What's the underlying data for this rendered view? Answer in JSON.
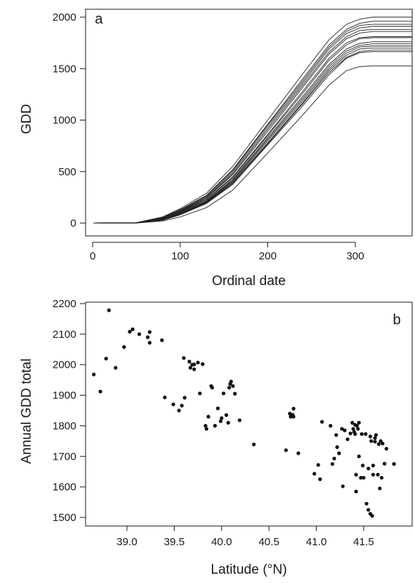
{
  "chart_data": [
    {
      "type": "line",
      "panel_label": "a",
      "xlabel": "Ordinal date",
      "ylabel": "GDD",
      "xlim": [
        0,
        365
      ],
      "ylim": [
        0,
        2000
      ],
      "x_ticks": [
        0,
        100,
        200,
        300
      ],
      "y_ticks": [
        0,
        500,
        1000,
        1500,
        2000
      ],
      "grid": false,
      "series": [
        {
          "x": [
            1,
            50,
            80,
            100,
            130,
            160,
            200,
            240,
            270,
            290,
            305,
            320,
            365
          ],
          "y": [
            0,
            5,
            60,
            140,
            290,
            550,
            1000,
            1450,
            1780,
            1930,
            1980,
            2000,
            2000
          ]
        },
        {
          "x": [
            1,
            50,
            80,
            100,
            130,
            160,
            200,
            240,
            270,
            290,
            305,
            320,
            365
          ],
          "y": [
            0,
            4,
            55,
            130,
            270,
            520,
            960,
            1400,
            1730,
            1880,
            1940,
            1960,
            1960
          ]
        },
        {
          "x": [
            1,
            50,
            80,
            100,
            130,
            160,
            200,
            240,
            270,
            290,
            305,
            320,
            365
          ],
          "y": [
            0,
            4,
            50,
            125,
            265,
            510,
            950,
            1380,
            1710,
            1860,
            1920,
            1930,
            1930
          ]
        },
        {
          "x": [
            1,
            50,
            80,
            100,
            130,
            160,
            200,
            240,
            270,
            290,
            305,
            320,
            365
          ],
          "y": [
            0,
            3,
            48,
            120,
            255,
            495,
            930,
            1360,
            1690,
            1840,
            1895,
            1910,
            1910
          ]
        },
        {
          "x": [
            1,
            50,
            80,
            100,
            130,
            160,
            200,
            240,
            270,
            290,
            305,
            320,
            365
          ],
          "y": [
            0,
            3,
            45,
            115,
            245,
            480,
            910,
            1340,
            1660,
            1810,
            1870,
            1880,
            1880
          ]
        },
        {
          "x": [
            1,
            50,
            80,
            100,
            130,
            160,
            200,
            240,
            270,
            290,
            305,
            320,
            365
          ],
          "y": [
            0,
            3,
            45,
            110,
            240,
            470,
            890,
            1320,
            1640,
            1790,
            1845,
            1860,
            1860
          ]
        },
        {
          "x": [
            1,
            50,
            80,
            100,
            130,
            160,
            200,
            240,
            270,
            290,
            305,
            320,
            365
          ],
          "y": [
            0,
            3,
            40,
            105,
            230,
            450,
            860,
            1280,
            1600,
            1750,
            1800,
            1810,
            1810
          ]
        },
        {
          "x": [
            1,
            50,
            80,
            100,
            130,
            160,
            200,
            240,
            270,
            290,
            305,
            320,
            365
          ],
          "y": [
            0,
            2,
            38,
            100,
            225,
            440,
            850,
            1260,
            1580,
            1730,
            1790,
            1800,
            1800
          ]
        },
        {
          "x": [
            1,
            50,
            80,
            100,
            130,
            160,
            200,
            240,
            270,
            290,
            305,
            320,
            365
          ],
          "y": [
            0,
            2,
            35,
            95,
            215,
            425,
            830,
            1230,
            1540,
            1690,
            1745,
            1760,
            1760
          ]
        },
        {
          "x": [
            1,
            50,
            80,
            100,
            130,
            160,
            200,
            240,
            270,
            290,
            305,
            320,
            365
          ],
          "y": [
            0,
            2,
            35,
            90,
            210,
            415,
            815,
            1210,
            1520,
            1670,
            1725,
            1740,
            1740
          ]
        },
        {
          "x": [
            1,
            50,
            80,
            100,
            130,
            160,
            200,
            240,
            270,
            290,
            305,
            320,
            365
          ],
          "y": [
            0,
            2,
            32,
            88,
            205,
            405,
            800,
            1190,
            1500,
            1650,
            1710,
            1720,
            1720
          ]
        },
        {
          "x": [
            1,
            50,
            80,
            100,
            130,
            160,
            200,
            240,
            270,
            290,
            305,
            320,
            365
          ],
          "y": [
            0,
            2,
            30,
            85,
            200,
            395,
            780,
            1170,
            1480,
            1630,
            1690,
            1700,
            1700
          ]
        },
        {
          "x": [
            1,
            50,
            80,
            100,
            130,
            160,
            200,
            240,
            270,
            290,
            305,
            320,
            365
          ],
          "y": [
            0,
            2,
            30,
            82,
            195,
            385,
            770,
            1160,
            1460,
            1610,
            1665,
            1680,
            1680
          ]
        },
        {
          "x": [
            1,
            50,
            80,
            100,
            130,
            160,
            200,
            240,
            270,
            290,
            305,
            320,
            365
          ],
          "y": [
            0,
            1,
            28,
            80,
            190,
            375,
            760,
            1140,
            1440,
            1600,
            1655,
            1665,
            1665
          ]
        },
        {
          "x": [
            1,
            50,
            80,
            100,
            130,
            160,
            200,
            240,
            270,
            290,
            305,
            320,
            365
          ],
          "y": [
            0,
            1,
            20,
            60,
            150,
            320,
            680,
            1050,
            1340,
            1480,
            1520,
            1525,
            1525
          ]
        }
      ]
    },
    {
      "type": "scatter",
      "panel_label": "b",
      "xlabel": "Latitude (°N)",
      "ylabel": "Annual GDD total",
      "xlim": [
        38.6,
        41.85
      ],
      "ylim": [
        1490,
        2210
      ],
      "x_ticks": [
        "39.0",
        "39.5",
        "40.0",
        "40.5",
        "41.0",
        "41.5"
      ],
      "y_ticks": [
        "1500",
        "1600",
        "1700",
        "1800",
        "1900",
        "2000",
        "2100",
        "2200"
      ],
      "grid": false,
      "points": [
        [
          38.65,
          1968
        ],
        [
          38.72,
          1912
        ],
        [
          38.78,
          2020
        ],
        [
          38.81,
          2178
        ],
        [
          38.88,
          1990
        ],
        [
          38.97,
          2058
        ],
        [
          39.03,
          2108
        ],
        [
          39.06,
          2116
        ],
        [
          39.13,
          2100
        ],
        [
          39.22,
          2090
        ],
        [
          39.24,
          2107
        ],
        [
          39.24,
          2072
        ],
        [
          39.37,
          2080
        ],
        [
          39.4,
          1893
        ],
        [
          39.49,
          1870
        ],
        [
          39.55,
          1850
        ],
        [
          39.58,
          1866
        ],
        [
          39.6,
          2022
        ],
        [
          39.61,
          1892
        ],
        [
          39.66,
          2010
        ],
        [
          39.67,
          1990
        ],
        [
          39.69,
          2000
        ],
        [
          39.71,
          1985
        ],
        [
          39.71,
          2001
        ],
        [
          39.75,
          2007
        ],
        [
          39.77,
          1906
        ],
        [
          39.8,
          2002
        ],
        [
          39.83,
          1800
        ],
        [
          39.84,
          1790
        ],
        [
          39.86,
          1830
        ],
        [
          39.89,
          1930
        ],
        [
          39.9,
          1925
        ],
        [
          39.93,
          1800
        ],
        [
          39.96,
          1857
        ],
        [
          39.99,
          1815
        ],
        [
          40.0,
          1825
        ],
        [
          40.02,
          1906
        ],
        [
          40.05,
          1835
        ],
        [
          40.07,
          1810
        ],
        [
          40.08,
          1925
        ],
        [
          40.09,
          1937
        ],
        [
          40.1,
          1945
        ],
        [
          40.12,
          1930
        ],
        [
          40.14,
          1905
        ],
        [
          40.19,
          1818
        ],
        [
          40.34,
          1739
        ],
        [
          40.68,
          1720
        ],
        [
          40.72,
          1840
        ],
        [
          40.73,
          1830
        ],
        [
          40.75,
          1836
        ],
        [
          40.76,
          1856
        ],
        [
          40.76,
          1830
        ],
        [
          40.81,
          1710
        ],
        [
          40.98,
          1643
        ],
        [
          41.02,
          1672
        ],
        [
          41.04,
          1625
        ],
        [
          41.06,
          1813
        ],
        [
          41.15,
          1800
        ],
        [
          41.17,
          1675
        ],
        [
          41.19,
          1693
        ],
        [
          41.21,
          1770
        ],
        [
          41.22,
          1730
        ],
        [
          41.24,
          1710
        ],
        [
          41.27,
          1790
        ],
        [
          41.28,
          1602
        ],
        [
          41.3,
          1785
        ],
        [
          41.33,
          1756
        ],
        [
          41.36,
          1775
        ],
        [
          41.38,
          1810
        ],
        [
          41.39,
          1790
        ],
        [
          41.4,
          1780
        ],
        [
          41.41,
          1773
        ],
        [
          41.41,
          1803
        ],
        [
          41.42,
          1585
        ],
        [
          41.42,
          1640
        ],
        [
          41.43,
          1800
        ],
        [
          41.44,
          1790
        ],
        [
          41.45,
          1700
        ],
        [
          41.45,
          1810
        ],
        [
          41.47,
          1630
        ],
        [
          41.48,
          1773
        ],
        [
          41.49,
          1670
        ],
        [
          41.5,
          1630
        ],
        [
          41.52,
          1773
        ],
        [
          41.53,
          1545
        ],
        [
          41.55,
          1525
        ],
        [
          41.55,
          1660
        ],
        [
          41.57,
          1765
        ],
        [
          41.57,
          1512
        ],
        [
          41.58,
          1750
        ],
        [
          41.59,
          1505
        ],
        [
          41.6,
          1640
        ],
        [
          41.6,
          1670
        ],
        [
          41.62,
          1748
        ],
        [
          41.62,
          1760
        ],
        [
          41.63,
          1770
        ],
        [
          41.65,
          1640
        ],
        [
          41.66,
          1740
        ],
        [
          41.67,
          1595
        ],
        [
          41.68,
          1750
        ],
        [
          41.69,
          1630
        ],
        [
          41.7,
          1742
        ],
        [
          41.72,
          1676
        ],
        [
          41.74,
          1725
        ],
        [
          41.82,
          1675
        ]
      ]
    }
  ]
}
